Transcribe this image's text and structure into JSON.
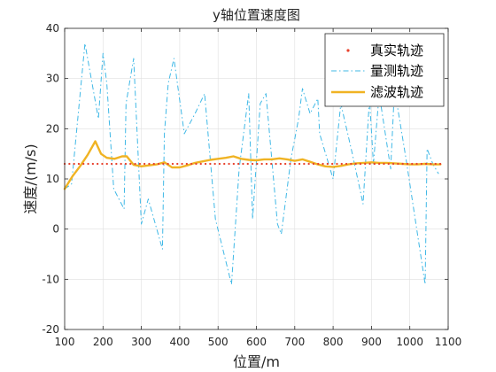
{
  "chart_data": {
    "type": "line",
    "title": "y轴位置速度图",
    "xlabel": "位置/m",
    "ylabel": "速度/(m/s)",
    "xlim": [
      100,
      1100
    ],
    "ylim": [
      -20,
      40
    ],
    "xticks": [
      100,
      200,
      300,
      400,
      500,
      600,
      700,
      800,
      900,
      1000,
      1100
    ],
    "yticks": [
      -20,
      -10,
      0,
      10,
      20,
      30,
      40
    ],
    "grid": true,
    "legend_position": "top-right",
    "series": [
      {
        "name": "真实轨迹",
        "style": "dotted",
        "color": "#e8412c",
        "x": [
          100,
          1080
        ],
        "y": [
          13,
          13
        ]
      },
      {
        "name": "量测轨迹",
        "style": "dash-dot",
        "color": "#3fb8e6",
        "x": [
          100,
          118,
          153,
          188,
          200,
          210,
          228,
          255,
          260,
          280,
          300,
          318,
          355,
          360,
          370,
          385,
          412,
          440,
          465,
          493,
          535,
          555,
          580,
          590,
          610,
          625,
          655,
          665,
          690,
          710,
          720,
          740,
          760,
          765,
          800,
          820,
          850,
          878,
          895,
          905,
          920,
          950,
          960,
          990,
          1040,
          1045,
          1060,
          1075
        ],
        "y": [
          8,
          9,
          37,
          22,
          35,
          29,
          8,
          4,
          25,
          34,
          1,
          6,
          -4,
          19,
          29,
          34,
          19,
          23,
          27,
          2,
          -11,
          12,
          27,
          2,
          25,
          27,
          1,
          -1,
          14,
          22,
          28,
          23,
          26,
          19,
          10,
          25,
          15,
          5,
          26,
          13,
          27,
          12,
          28,
          14,
          -11,
          16,
          13,
          11
        ]
      },
      {
        "name": "滤波轨迹",
        "style": "solid",
        "color": "#f0b323",
        "x": [
          100,
          120,
          140,
          160,
          180,
          195,
          210,
          230,
          250,
          262,
          280,
          300,
          320,
          340,
          360,
          380,
          400,
          420,
          440,
          460,
          480,
          500,
          520,
          540,
          560,
          580,
          600,
          620,
          640,
          660,
          680,
          700,
          720,
          740,
          760,
          780,
          800,
          820,
          840,
          860,
          880,
          900,
          920,
          940,
          960,
          980,
          1000,
          1020,
          1040,
          1060,
          1080
        ],
        "y": [
          8,
          10.5,
          12.5,
          14.8,
          17.5,
          15,
          14.2,
          14,
          14.5,
          14.5,
          12.8,
          12.5,
          12.7,
          12.9,
          13.3,
          12.3,
          12.3,
          12.7,
          13.2,
          13.5,
          13.8,
          14,
          14.2,
          14.5,
          14,
          13.8,
          13.7,
          13.9,
          13.9,
          14.1,
          13.9,
          13.6,
          13.9,
          13.4,
          12.9,
          12.5,
          12.4,
          12.6,
          12.9,
          13.1,
          13.2,
          13.3,
          13.2,
          13.2,
          13.1,
          13,
          12.9,
          12.9,
          13,
          12.9,
          12.9
        ]
      }
    ]
  }
}
